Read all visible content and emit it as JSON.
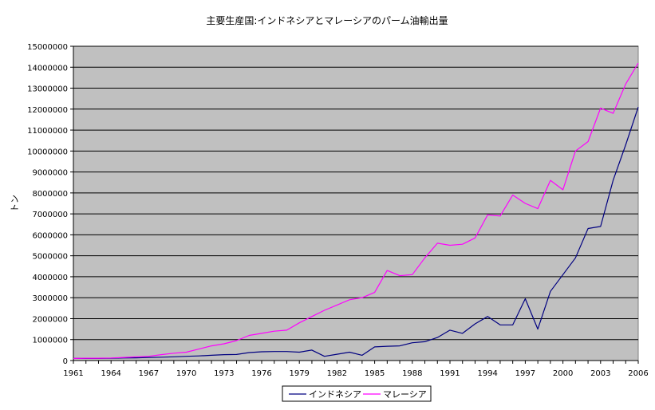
{
  "chart_data": {
    "type": "line",
    "title": "主要生産国:インドネシアとマレーシアのパーム油輸出量",
    "xlabel": "",
    "ylabel": "トン",
    "xlim": [
      1961,
      2006
    ],
    "ylim": [
      0,
      15000000
    ],
    "y_ticks": [
      0,
      1000000,
      2000000,
      3000000,
      4000000,
      5000000,
      6000000,
      7000000,
      8000000,
      9000000,
      10000000,
      11000000,
      12000000,
      13000000,
      14000000,
      15000000
    ],
    "x_ticks": [
      1961,
      1964,
      1967,
      1970,
      1973,
      1976,
      1979,
      1982,
      1985,
      1988,
      1991,
      1994,
      1997,
      2000,
      2003,
      2006
    ],
    "grid": true,
    "plot_background": "#c0c0c0",
    "legend_position": "bottom",
    "x": [
      1961,
      1962,
      1963,
      1964,
      1965,
      1966,
      1967,
      1968,
      1969,
      1970,
      1971,
      1972,
      1973,
      1974,
      1975,
      1976,
      1977,
      1978,
      1979,
      1980,
      1981,
      1982,
      1983,
      1984,
      1985,
      1986,
      1987,
      1988,
      1989,
      1990,
      1991,
      1992,
      1993,
      1994,
      1995,
      1996,
      1997,
      1998,
      1999,
      2000,
      2001,
      2002,
      2003,
      2004,
      2005,
      2006
    ],
    "series": [
      {
        "name": "インドネシア",
        "color": "#000080",
        "values": [
          100000,
          100000,
          100000,
          110000,
          120000,
          130000,
          150000,
          160000,
          180000,
          200000,
          220000,
          250000,
          280000,
          290000,
          380000,
          420000,
          430000,
          430000,
          400000,
          500000,
          200000,
          300000,
          400000,
          250000,
          650000,
          680000,
          700000,
          850000,
          900000,
          1100000,
          1450000,
          1300000,
          1750000,
          2100000,
          1700000,
          1700000,
          2950000,
          1500000,
          3300000,
          4100000,
          4900000,
          6300000,
          6400000,
          8600000,
          10300000,
          12100000
        ]
      },
      {
        "name": "マレーシア",
        "color": "#ff00ff",
        "values": [
          100000,
          110000,
          110000,
          120000,
          150000,
          180000,
          200000,
          280000,
          350000,
          400000,
          550000,
          700000,
          800000,
          950000,
          1200000,
          1300000,
          1400000,
          1450000,
          1800000,
          2100000,
          2400000,
          2650000,
          2900000,
          3000000,
          3250000,
          4300000,
          4050000,
          4100000,
          4900000,
          5600000,
          5500000,
          5550000,
          5850000,
          6950000,
          6900000,
          7900000,
          7500000,
          7250000,
          8600000,
          8150000,
          10000000,
          10450000,
          12050000,
          11800000,
          13200000,
          14200000
        ]
      }
    ]
  }
}
